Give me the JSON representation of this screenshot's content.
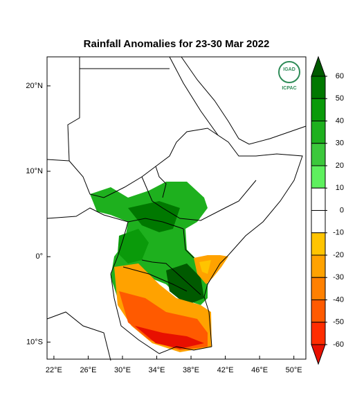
{
  "map": {
    "title": "Rainfall Anomalies for 23-30 Mar 2022",
    "xlim": [
      21.2,
      51.4
    ],
    "ylim": [
      -12,
      23.4
    ],
    "xticks": [
      {
        "value": 22,
        "label": "22°E"
      },
      {
        "value": 26,
        "label": "26°E"
      },
      {
        "value": 30,
        "label": "30°E"
      },
      {
        "value": 34,
        "label": "34°E"
      },
      {
        "value": 38,
        "label": "38°E"
      },
      {
        "value": 42,
        "label": "42°E"
      },
      {
        "value": 46,
        "label": "46°E"
      },
      {
        "value": 50,
        "label": "50°E"
      }
    ],
    "yticks": [
      {
        "value": 20,
        "label": "20°N"
      },
      {
        "value": 10,
        "label": "10°N"
      },
      {
        "value": 0,
        "label": "0°"
      },
      {
        "value": -10,
        "label": "10°S"
      }
    ],
    "colorbar": {
      "ticks": [
        60,
        50,
        40,
        30,
        20,
        10,
        0,
        -10,
        -20,
        -30,
        -40,
        -50,
        -60
      ],
      "colors": [
        "#005a00",
        "#007800",
        "#0a9a0a",
        "#1eb01e",
        "#3cc83c",
        "#5ef05e",
        "#ffffff",
        "#ffffff",
        "#ffc400",
        "#ffa200",
        "#ff8000",
        "#ff5a00",
        "#ff2d00",
        "#e81000"
      ]
    },
    "logo": {
      "top": "IGAD",
      "bottom": "ICPAC"
    }
  }
}
